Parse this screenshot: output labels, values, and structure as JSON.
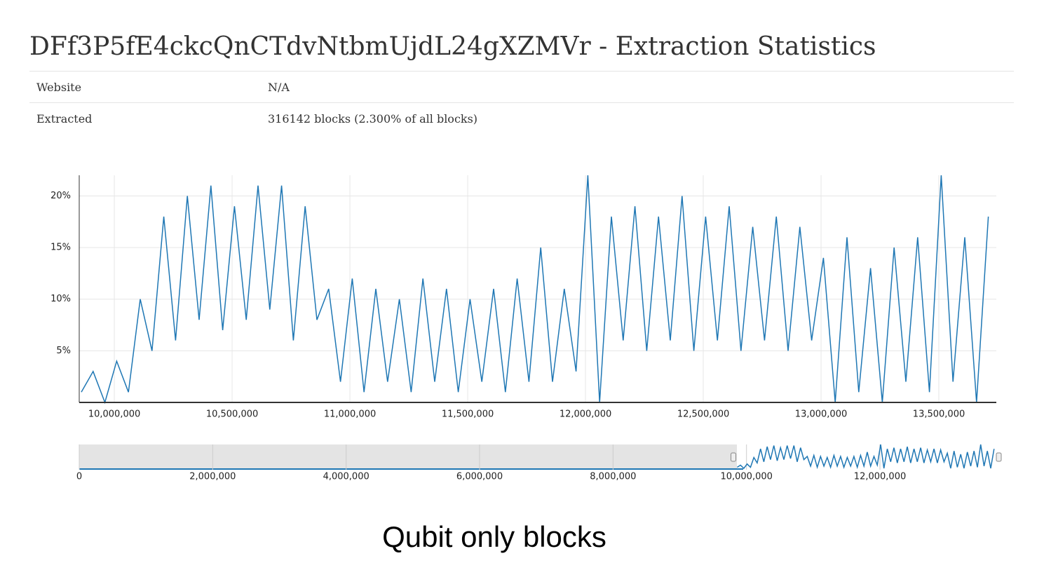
{
  "header": {
    "title": "DFf3P5fE4ckcQnCTdvNtbmUjdL24gXZMVr - Extraction Statistics"
  },
  "table": {
    "rows": [
      [
        "Website",
        "N/A"
      ],
      [
        "Extracted",
        "316142 blocks (2.300% of all blocks)"
      ]
    ]
  },
  "chart_data": {
    "type": "line",
    "color": "#1f77b4",
    "grid": true,
    "x": [
      9860000,
      9910000,
      9960000,
      10010000,
      10060000,
      10110000,
      10160000,
      10210000,
      10260000,
      10310000,
      10360000,
      10410000,
      10460000,
      10510000,
      10560000,
      10610000,
      10660000,
      10710000,
      10760000,
      10810000,
      10860000,
      10910000,
      10960000,
      11010000,
      11060000,
      11110000,
      11160000,
      11210000,
      11260000,
      11310000,
      11360000,
      11410000,
      11460000,
      11510000,
      11560000,
      11610000,
      11660000,
      11710000,
      11760000,
      11810000,
      11860000,
      11910000,
      11960000,
      12010000,
      12060000,
      12110000,
      12160000,
      12210000,
      12260000,
      12310000,
      12360000,
      12410000,
      12460000,
      12510000,
      12560000,
      12610000,
      12660000,
      12710000,
      12760000,
      12810000,
      12860000,
      12910000,
      12960000,
      13010000,
      13060000,
      13110000,
      13160000,
      13210000,
      13260000,
      13310000,
      13360000,
      13410000,
      13460000,
      13510000,
      13560000,
      13610000,
      13660000,
      13710000
    ],
    "values": [
      1,
      3,
      0,
      4,
      1,
      10,
      5,
      18,
      6,
      20,
      8,
      21,
      7,
      19,
      8,
      21,
      9,
      21,
      6,
      19,
      8,
      11,
      2,
      12,
      1,
      11,
      2,
      10,
      1,
      12,
      2,
      11,
      1,
      10,
      2,
      11,
      1,
      12,
      2,
      15,
      2,
      11,
      3,
      22,
      0,
      18,
      6,
      19,
      5,
      18,
      6,
      20,
      5,
      18,
      6,
      19,
      5,
      17,
      6,
      18,
      5,
      17,
      6,
      14,
      0,
      16,
      1,
      13,
      0,
      15,
      2,
      16,
      1,
      22,
      2,
      16,
      0,
      18
    ],
    "xlim": [
      9851000,
      13744000
    ],
    "xticks": [
      {
        "value": 10000000,
        "label": "10,000,000"
      },
      {
        "value": 10500000,
        "label": "10,500,000"
      },
      {
        "value": 11000000,
        "label": "11,000,000"
      },
      {
        "value": 11500000,
        "label": "11,500,000"
      },
      {
        "value": 12000000,
        "label": "12,000,000"
      },
      {
        "value": 12500000,
        "label": "12,500,000"
      },
      {
        "value": 13000000,
        "label": "13,000,000"
      },
      {
        "value": 13500000,
        "label": "13,500,000"
      }
    ],
    "ylim": [
      0,
      22
    ],
    "yticks": [
      {
        "value": 5,
        "label": "5%"
      },
      {
        "value": 10,
        "label": "10%"
      },
      {
        "value": 15,
        "label": "15%"
      },
      {
        "value": 20,
        "label": "20%"
      }
    ],
    "navigator": {
      "xlim": [
        0,
        13744000
      ],
      "xticks": [
        0,
        {
          "value": 2000000,
          "label": "2,000,000"
        },
        {
          "value": 4000000,
          "label": "4,000,000"
        },
        {
          "value": 6000000,
          "label": "6,000,000"
        },
        {
          "value": 8000000,
          "label": "8,000,000"
        },
        {
          "value": 10000000,
          "label": "10,000,000"
        },
        {
          "value": 12000000,
          "label": "12,000,000"
        }
      ]
    }
  },
  "caption": "Qubit only blocks"
}
